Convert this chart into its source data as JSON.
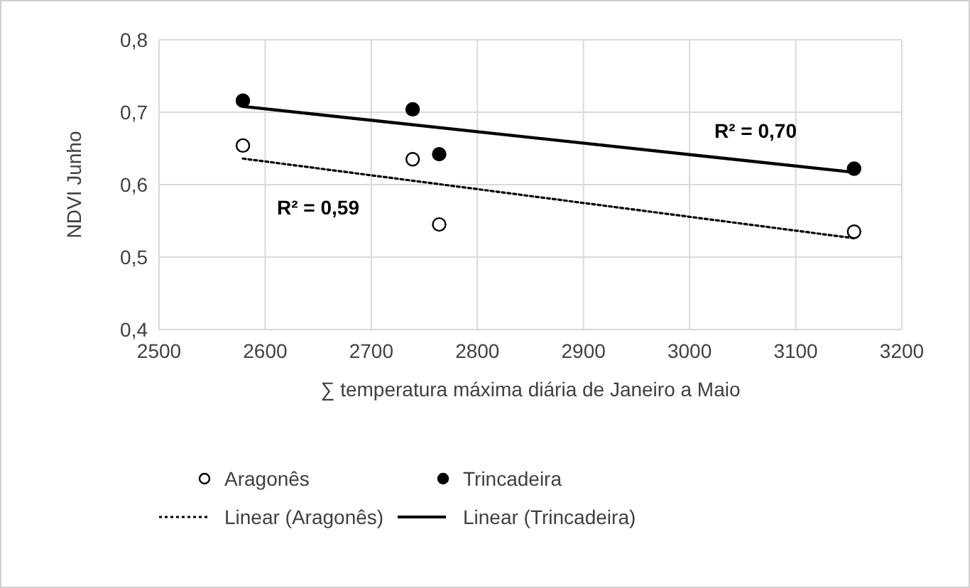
{
  "chart_data": {
    "type": "scatter",
    "xlabel": "∑ temperatura  máxima diária de Janeiro a Maio",
    "ylabel": "NDVI Junho",
    "xlim": [
      2500,
      3200
    ],
    "xticks": [
      2500,
      2600,
      2700,
      2800,
      2900,
      3000,
      3100,
      3200
    ],
    "ylim": [
      0.4,
      0.8
    ],
    "yticks": [
      {
        "value": 0.4,
        "label": "0,4"
      },
      {
        "value": 0.5,
        "label": "0,5"
      },
      {
        "value": 0.6,
        "label": "0,6"
      },
      {
        "value": 0.7,
        "label": "0,7"
      },
      {
        "value": 0.8,
        "label": "0,8"
      }
    ],
    "grid": true,
    "legend": "bottom",
    "series": [
      {
        "name": "Aragonês",
        "marker": "circle",
        "color": "#ffffff",
        "x": [
          2579,
          2739,
          2764,
          3155
        ],
        "values": [
          0.654,
          0.635,
          0.545,
          0.535
        ]
      },
      {
        "name": "Trincadeira",
        "marker": "circle",
        "color": "#000000",
        "x": [
          2579,
          2739,
          2764,
          3155
        ],
        "values": [
          0.716,
          0.704,
          0.642,
          0.622
        ]
      },
      {
        "name": "Linear (Aragonês)",
        "type": "line",
        "marker": "none",
        "line_style": "dotted",
        "color": "#000000",
        "x": [
          2579,
          3155
        ],
        "values": [
          0.636,
          0.526
        ]
      },
      {
        "name": "Linear (Trincadeira)",
        "type": "line",
        "marker": "none",
        "line_style": "solid",
        "color": "#000000",
        "x": [
          2579,
          3155
        ],
        "values": [
          0.708,
          0.617
        ]
      }
    ],
    "annotations": [
      "R² = 0,70",
      "R² = 0,59"
    ]
  }
}
